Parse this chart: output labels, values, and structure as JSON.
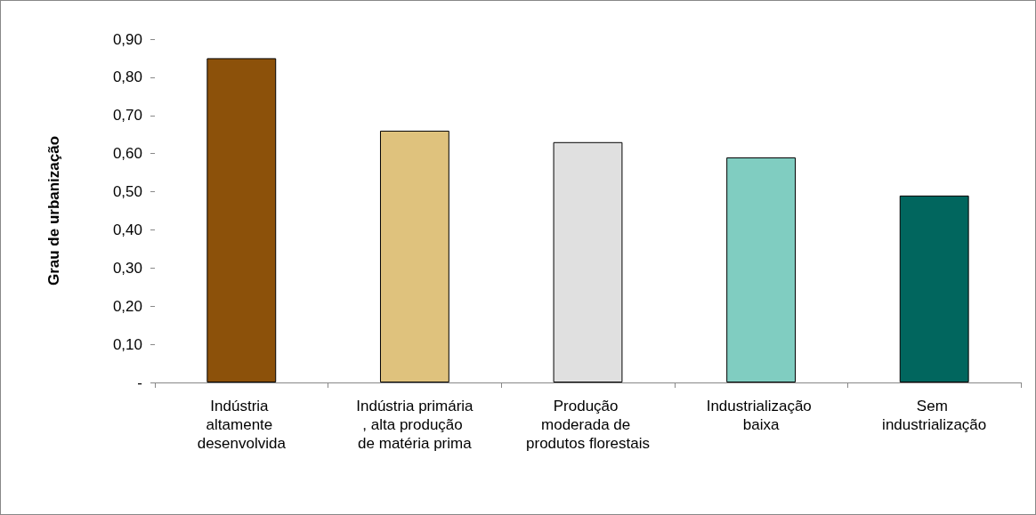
{
  "chart_data": {
    "type": "bar",
    "ylabel": "Grau de urbanização",
    "categories": [
      "Indústria altamente desenvolvida",
      "Indústria primária, alta produção de matéria prima",
      "Produção moderada de produtos florestais",
      "Industrialização baixa",
      "Sem industrialização"
    ],
    "values": [
      0.85,
      0.66,
      0.63,
      0.59,
      0.49
    ],
    "colors": [
      "#8c510a",
      "#dfc27d",
      "#e0e0e0",
      "#80cdc1",
      "#01665e"
    ],
    "ylim": [
      0,
      0.9
    ],
    "yticks": [
      {
        "value": 0,
        "label": "-"
      },
      {
        "value": 0.1,
        "label": "0,10"
      },
      {
        "value": 0.2,
        "label": "0,20"
      },
      {
        "value": 0.3,
        "label": "0,30"
      },
      {
        "value": 0.4,
        "label": "0,40"
      },
      {
        "value": 0.5,
        "label": "0,50"
      },
      {
        "value": 0.6,
        "label": "0,60"
      },
      {
        "value": 0.7,
        "label": "0,70"
      },
      {
        "value": 0.8,
        "label": "0,80"
      },
      {
        "value": 0.9,
        "label": "0,90"
      }
    ],
    "grid": false
  }
}
